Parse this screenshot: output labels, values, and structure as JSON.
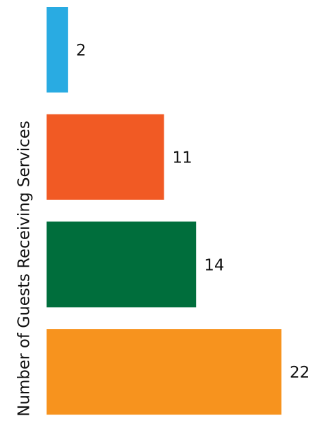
{
  "chart_data": {
    "type": "bar",
    "orientation": "horizontal",
    "ylabel": "Number of Guests Receiving Services",
    "categories": [
      null,
      null,
      null,
      null
    ],
    "values": [
      2,
      11,
      14,
      22
    ],
    "colors": [
      "#29abe2",
      "#f15a24",
      "#006e3c",
      "#f7931e"
    ]
  }
}
